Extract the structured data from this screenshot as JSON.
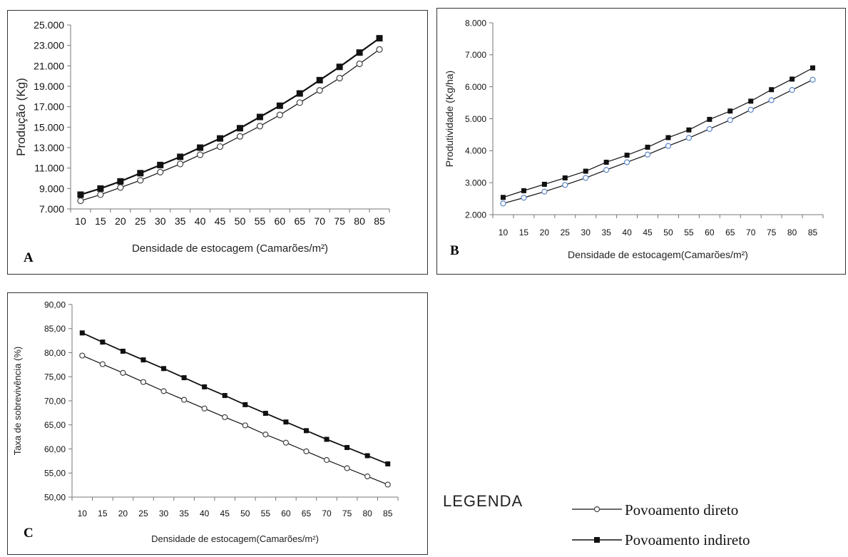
{
  "panel_letters": {
    "a": "A",
    "b": "B",
    "c": "C"
  },
  "legend": {
    "title": "LEGENDA",
    "items": [
      {
        "label": "Povoamento direto",
        "marker": "open-circle"
      },
      {
        "label": "Povoamento indireto",
        "marker": "filled-square"
      }
    ]
  },
  "colors": {
    "line": "#111111",
    "circle_b": "#5b86c5",
    "circle_default": "#444444"
  },
  "chart_data": [
    {
      "id": "A",
      "type": "line",
      "xlabel": "Densidade de estocagem (Camarões/m²)",
      "ylabel": "Produção (Kg)",
      "x": [
        10,
        15,
        20,
        25,
        30,
        35,
        40,
        45,
        50,
        55,
        60,
        65,
        70,
        75,
        80,
        85
      ],
      "x_tick_labels": [
        "10",
        "15",
        "20",
        "25",
        "30",
        "35",
        "40",
        "45",
        "50",
        "55",
        "60",
        "65",
        "70",
        "75",
        "80",
        "85"
      ],
      "ylim": [
        7000,
        25000
      ],
      "y_ticks": [
        7000,
        9000,
        11000,
        13000,
        15000,
        17000,
        19000,
        21000,
        23000,
        25000
      ],
      "y_tick_labels": [
        "7.000",
        "9.000",
        "11.000",
        "13.000",
        "15.000",
        "17.000",
        "19.000",
        "21.000",
        "23.000",
        "25.000"
      ],
      "grid": false,
      "series": [
        {
          "name": "Povoamento direto",
          "marker": "open-circle",
          "values": [
            7800,
            8400,
            9100,
            9800,
            10600,
            11400,
            12300,
            13100,
            14100,
            15100,
            16200,
            17400,
            18600,
            19800,
            21200,
            22600
          ]
        },
        {
          "name": "Povoamento indireto",
          "marker": "filled-square",
          "values": [
            8400,
            9000,
            9700,
            10500,
            11300,
            12100,
            13000,
            13900,
            14900,
            16000,
            17100,
            18300,
            19600,
            20900,
            22300,
            23700
          ]
        }
      ]
    },
    {
      "id": "B",
      "type": "line",
      "xlabel": "Densidade de estocagem(Camarões/m²)",
      "ylabel": "Produtividade (Kg/ha)",
      "x": [
        10,
        15,
        20,
        25,
        30,
        35,
        40,
        45,
        50,
        55,
        60,
        65,
        70,
        75,
        80,
        85
      ],
      "x_tick_labels": [
        "10",
        "15",
        "20",
        "25",
        "30",
        "35",
        "40",
        "45",
        "50",
        "55",
        "60",
        "65",
        "70",
        "75",
        "80",
        "85"
      ],
      "ylim": [
        2000,
        8000
      ],
      "y_ticks": [
        2000,
        3000,
        4000,
        5000,
        6000,
        7000,
        8000
      ],
      "y_tick_labels": [
        "2.000",
        "3.000",
        "4.000",
        "5.000",
        "6.000",
        "7.000",
        "8.000"
      ],
      "grid": false,
      "series": [
        {
          "name": "Povoamento direto",
          "marker": "open-circle",
          "values": [
            2350,
            2530,
            2720,
            2930,
            3150,
            3400,
            3640,
            3880,
            4150,
            4400,
            4680,
            4960,
            5280,
            5580,
            5900,
            6220
          ]
        },
        {
          "name": "Povoamento indireto",
          "marker": "filled-square",
          "values": [
            2540,
            2750,
            2950,
            3150,
            3360,
            3640,
            3860,
            4110,
            4410,
            4650,
            4980,
            5240,
            5550,
            5910,
            6240,
            6590
          ]
        }
      ]
    },
    {
      "id": "C",
      "type": "line",
      "xlabel": "Densidade  de estocagem(Camarões/m²)",
      "ylabel": "Taxa de  sobrevivência (%)",
      "x": [
        10,
        15,
        20,
        25,
        30,
        35,
        40,
        45,
        50,
        55,
        60,
        65,
        70,
        75,
        80,
        85
      ],
      "x_tick_labels": [
        "10",
        "15",
        "20",
        "25",
        "30",
        "35",
        "40",
        "45",
        "50",
        "55",
        "60",
        "65",
        "70",
        "75",
        "80",
        "85"
      ],
      "ylim": [
        50,
        90
      ],
      "y_ticks": [
        50,
        55,
        60,
        65,
        70,
        75,
        80,
        85,
        90
      ],
      "y_tick_labels": [
        "50,00",
        "55,00",
        "60,00",
        "65,00",
        "70,00",
        "75,00",
        "80,00",
        "85,00",
        "90,00"
      ],
      "grid": false,
      "series": [
        {
          "name": "Povoamento direto",
          "marker": "open-circle",
          "values": [
            79.4,
            77.6,
            75.8,
            73.9,
            72.0,
            70.2,
            68.4,
            66.6,
            64.9,
            63.0,
            61.3,
            59.5,
            57.7,
            56.0,
            54.3,
            52.6
          ]
        },
        {
          "name": "Povoamento indireto",
          "marker": "filled-square",
          "values": [
            84.1,
            82.2,
            80.3,
            78.5,
            76.7,
            74.8,
            72.9,
            71.1,
            69.2,
            67.4,
            65.6,
            63.8,
            62.0,
            60.3,
            58.6,
            56.9
          ]
        }
      ]
    }
  ]
}
